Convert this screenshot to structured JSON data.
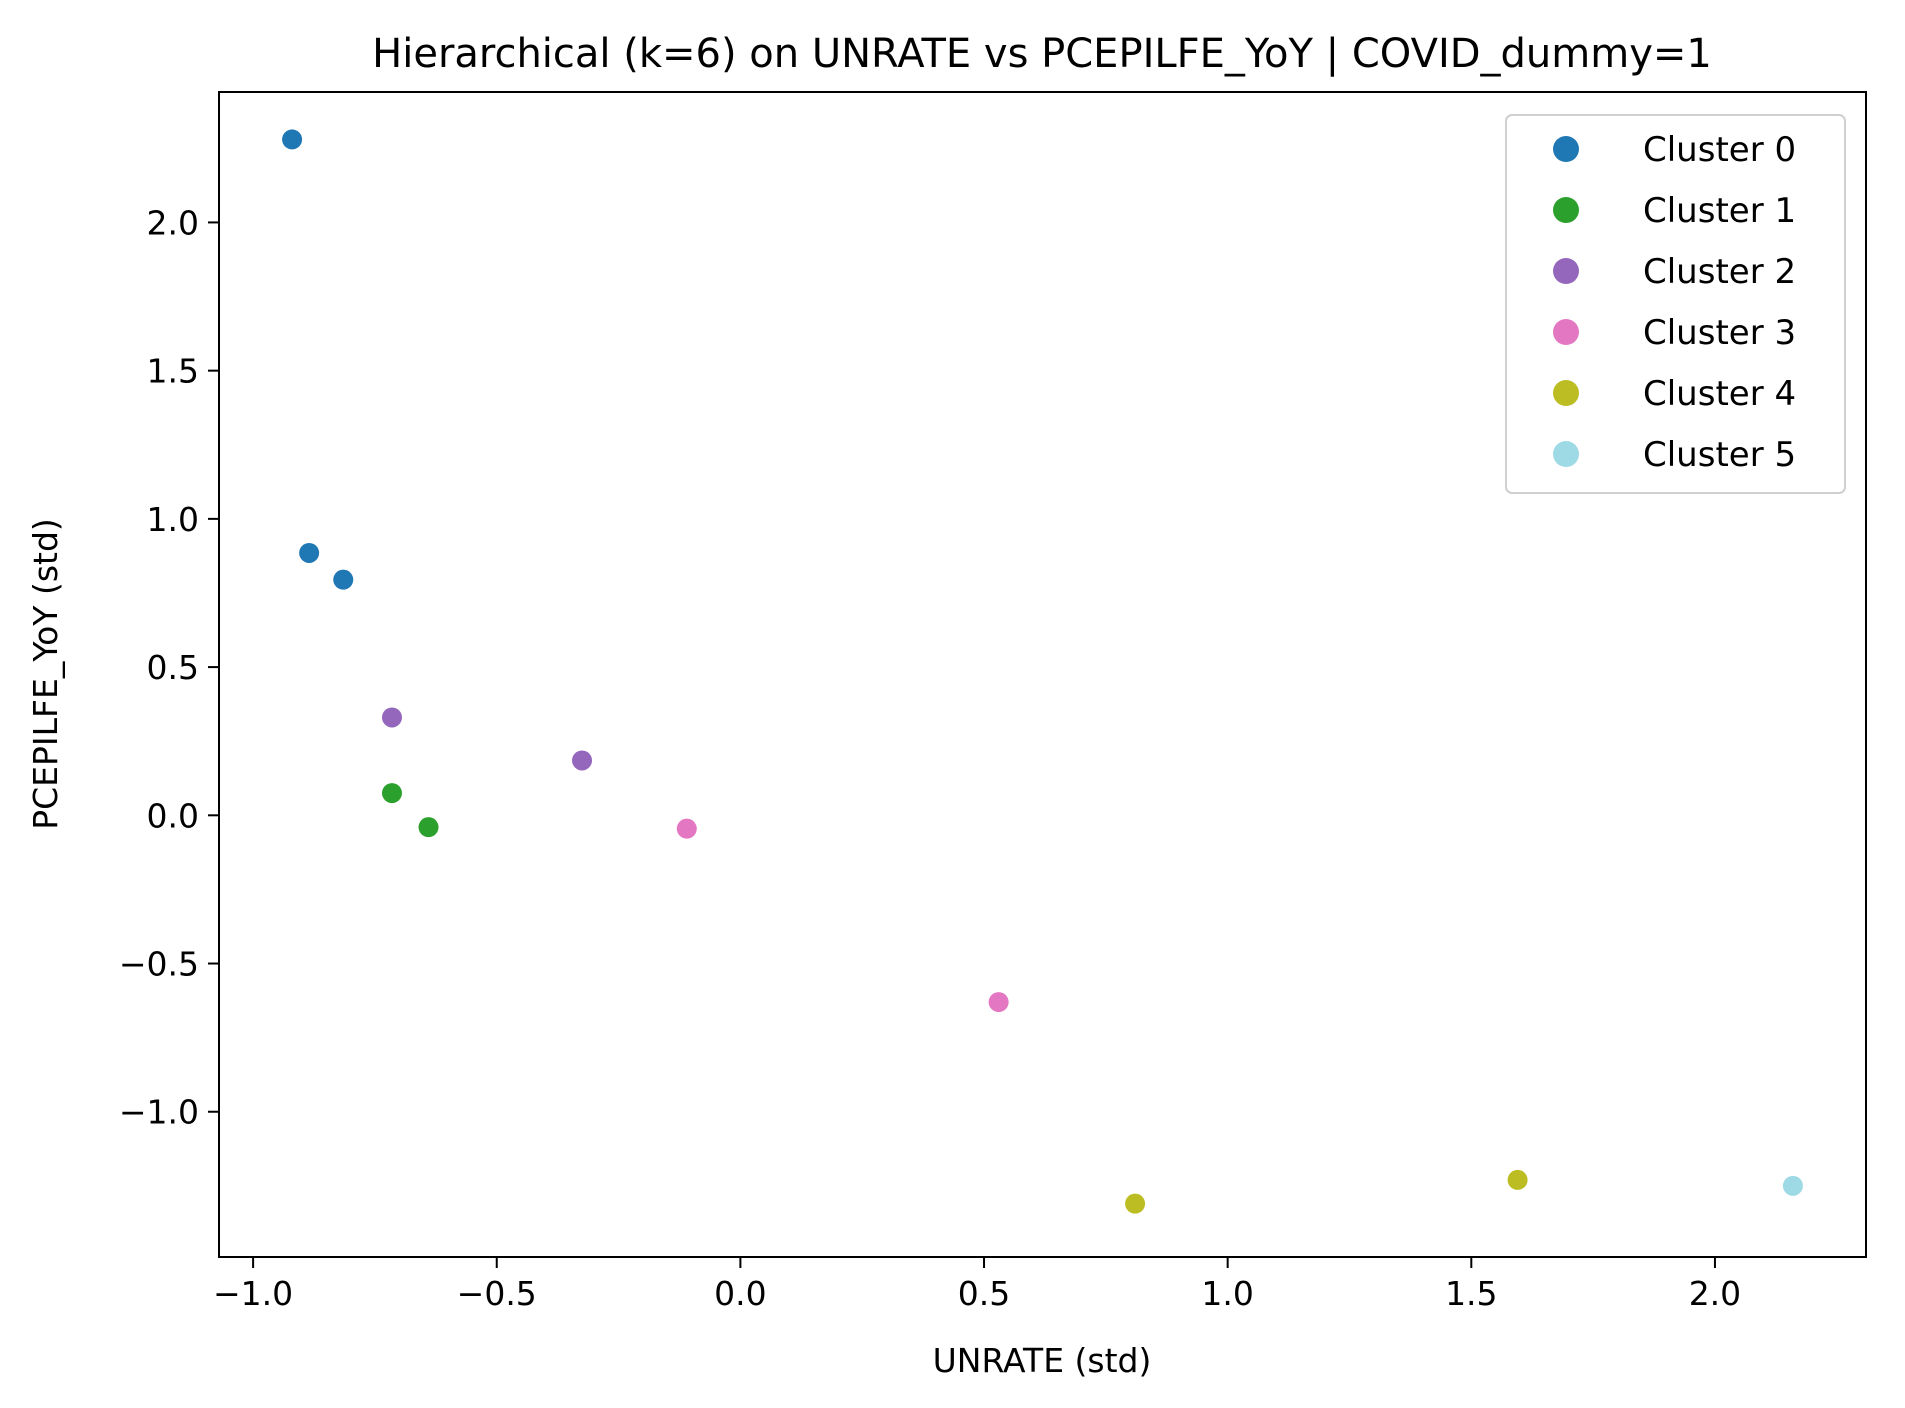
{
  "chart_data": {
    "type": "scatter",
    "title": "Hierarchical (k=6) on UNRATE vs PCEPILFE_YoY | COVID_dummy=1",
    "xlabel": "UNRATE (std)",
    "ylabel": "PCEPILFE_YoY (std)",
    "xlim": [
      -1.07,
      2.31
    ],
    "ylim": [
      -1.49,
      2.44
    ],
    "xticks": [
      -1.0,
      -0.5,
      0.0,
      0.5,
      1.0,
      1.5,
      2.0
    ],
    "xtick_labels": [
      "−1.0",
      "−0.5",
      "0.0",
      "0.5",
      "1.0",
      "1.5",
      "2.0"
    ],
    "yticks": [
      -1.0,
      -0.5,
      0.0,
      0.5,
      1.0,
      1.5,
      2.0
    ],
    "ytick_labels": [
      "−1.0",
      "−0.5",
      "0.0",
      "0.5",
      "1.0",
      "1.5",
      "2.0"
    ],
    "grid": false,
    "legend_position": "top-right",
    "series": [
      {
        "name": "Cluster 0",
        "color": "#1f77b4",
        "points": [
          [
            -0.92,
            2.28
          ],
          [
            -0.885,
            0.885
          ],
          [
            -0.815,
            0.795
          ]
        ]
      },
      {
        "name": "Cluster 1",
        "color": "#2ca02c",
        "points": [
          [
            -0.715,
            0.075
          ],
          [
            -0.64,
            -0.04
          ]
        ]
      },
      {
        "name": "Cluster 2",
        "color": "#9467bd",
        "points": [
          [
            -0.715,
            0.33
          ],
          [
            -0.325,
            0.185
          ]
        ]
      },
      {
        "name": "Cluster 3",
        "color": "#e377c2",
        "points": [
          [
            -0.11,
            -0.045
          ],
          [
            0.53,
            -0.63
          ]
        ]
      },
      {
        "name": "Cluster 4",
        "color": "#bcbd22",
        "points": [
          [
            0.81,
            -1.31
          ],
          [
            1.595,
            -1.23
          ]
        ]
      },
      {
        "name": "Cluster 5",
        "color": "#9edae5",
        "points": [
          [
            2.16,
            -1.25
          ]
        ]
      }
    ]
  }
}
